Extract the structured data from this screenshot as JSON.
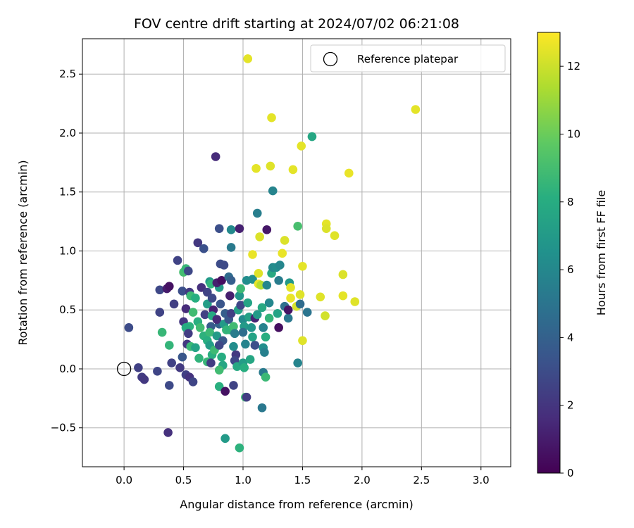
{
  "chart_data": {
    "type": "scatter",
    "title": "FOV centre drift starting at 2024/07/02 06:21:08",
    "xlabel": "Angular distance from reference (arcmin)",
    "ylabel": "Rotation from reference (arcmin)",
    "xlim": [
      -0.35,
      3.25
    ],
    "ylim": [
      -0.83,
      2.8
    ],
    "xticks": [
      0.0,
      0.5,
      1.0,
      1.5,
      2.0,
      2.5,
      3.0
    ],
    "xtick_labels": [
      "0.0",
      "0.5",
      "1.0",
      "1.5",
      "2.0",
      "2.5",
      "3.0"
    ],
    "yticks": [
      -0.5,
      0.0,
      0.5,
      1.0,
      1.5,
      2.0,
      2.5
    ],
    "ytick_labels": [
      "−0.5",
      "0.0",
      "0.5",
      "1.0",
      "1.5",
      "2.0",
      "2.5"
    ],
    "grid": true,
    "legend": {
      "placement": "top-right",
      "entries": [
        "Reference platepar"
      ]
    },
    "reference_point": {
      "x": 0.0,
      "y": 0.0
    },
    "colorbar": {
      "label": "Hours from first FF file",
      "range": [
        0,
        13
      ],
      "ticks": [
        0,
        2,
        4,
        6,
        8,
        10,
        12
      ],
      "tick_labels": [
        "0",
        "2",
        "4",
        "6",
        "8",
        "10",
        "12"
      ],
      "colormap": "viridis"
    },
    "points": [
      {
        "x": 0.12,
        "y": 0.01,
        "h": 2.5
      },
      {
        "x": 0.15,
        "y": -0.07,
        "h": 2.3
      },
      {
        "x": 0.17,
        "y": -0.09,
        "h": 2.1
      },
      {
        "x": 0.04,
        "y": 0.35,
        "h": 3.0
      },
      {
        "x": 0.28,
        "y": -0.02,
        "h": 2.7
      },
      {
        "x": 0.37,
        "y": -0.54,
        "h": 1.8
      },
      {
        "x": 0.38,
        "y": -0.14,
        "h": 2.9
      },
      {
        "x": 0.3,
        "y": 0.48,
        "h": 2.6
      },
      {
        "x": 0.3,
        "y": 0.67,
        "h": 2.8
      },
      {
        "x": 0.36,
        "y": 0.68,
        "h": 1.0
      },
      {
        "x": 0.38,
        "y": 0.7,
        "h": 0.6
      },
      {
        "x": 0.45,
        "y": 0.92,
        "h": 2.6
      },
      {
        "x": 0.42,
        "y": 0.55,
        "h": 2.4
      },
      {
        "x": 0.38,
        "y": 0.2,
        "h": 8.5
      },
      {
        "x": 0.32,
        "y": 0.31,
        "h": 8.6
      },
      {
        "x": 0.4,
        "y": 0.05,
        "h": 2.5
      },
      {
        "x": 0.47,
        "y": 0.01,
        "h": 2.2
      },
      {
        "x": 0.52,
        "y": -0.05,
        "h": 2.4
      },
      {
        "x": 0.55,
        "y": -0.07,
        "h": 1.9
      },
      {
        "x": 0.58,
        "y": -0.11,
        "h": 2.7
      },
      {
        "x": 0.49,
        "y": 0.1,
        "h": 3.5
      },
      {
        "x": 0.5,
        "y": 0.4,
        "h": 2.0
      },
      {
        "x": 0.52,
        "y": 0.51,
        "h": 1.6
      },
      {
        "x": 0.49,
        "y": 0.66,
        "h": 3.1
      },
      {
        "x": 0.5,
        "y": 0.82,
        "h": 9.0
      },
      {
        "x": 0.52,
        "y": 0.85,
        "h": 8.6
      },
      {
        "x": 0.54,
        "y": 0.83,
        "h": 2.8
      },
      {
        "x": 0.55,
        "y": 0.65,
        "h": 2.2
      },
      {
        "x": 0.56,
        "y": 0.62,
        "h": 8.8
      },
      {
        "x": 0.6,
        "y": 0.6,
        "h": 8.1
      },
      {
        "x": 0.58,
        "y": 0.48,
        "h": 8.9
      },
      {
        "x": 0.55,
        "y": 0.36,
        "h": 8.3
      },
      {
        "x": 0.52,
        "y": 0.35,
        "h": 8.0
      },
      {
        "x": 0.54,
        "y": 0.3,
        "h": 2.3
      },
      {
        "x": 0.53,
        "y": 0.21,
        "h": 2.1
      },
      {
        "x": 0.56,
        "y": 0.19,
        "h": 8.7
      },
      {
        "x": 0.6,
        "y": 0.18,
        "h": 7.5
      },
      {
        "x": 0.63,
        "y": 0.09,
        "h": 8.4
      },
      {
        "x": 0.62,
        "y": 0.4,
        "h": 8.2
      },
      {
        "x": 0.64,
        "y": 0.35,
        "h": 8.9
      },
      {
        "x": 0.67,
        "y": 0.28,
        "h": 8.3
      },
      {
        "x": 0.68,
        "y": 0.46,
        "h": 2.5
      },
      {
        "x": 0.62,
        "y": 1.07,
        "h": 2.1
      },
      {
        "x": 0.67,
        "y": 1.02,
        "h": 3.2
      },
      {
        "x": 0.65,
        "y": 0.69,
        "h": 1.8
      },
      {
        "x": 0.7,
        "y": 0.65,
        "h": 2.6
      },
      {
        "x": 0.7,
        "y": 0.55,
        "h": 7.2
      },
      {
        "x": 0.72,
        "y": 0.74,
        "h": 7.0
      },
      {
        "x": 0.73,
        "y": 0.72,
        "h": 8.4
      },
      {
        "x": 0.74,
        "y": 0.6,
        "h": 2.9
      },
      {
        "x": 0.75,
        "y": 0.5,
        "h": 1.2
      },
      {
        "x": 0.74,
        "y": 0.45,
        "h": 7.8
      },
      {
        "x": 0.73,
        "y": 0.36,
        "h": 3.7
      },
      {
        "x": 0.72,
        "y": 0.31,
        "h": 8.7
      },
      {
        "x": 0.7,
        "y": 0.24,
        "h": 8.1
      },
      {
        "x": 0.72,
        "y": 0.2,
        "h": 7.2
      },
      {
        "x": 0.74,
        "y": 0.12,
        "h": 8.2
      },
      {
        "x": 0.7,
        "y": 0.06,
        "h": 8.6
      },
      {
        "x": 0.73,
        "y": 0.05,
        "h": 2.3
      },
      {
        "x": 0.76,
        "y": 0.16,
        "h": 8.8
      },
      {
        "x": 0.78,
        "y": 0.28,
        "h": 7.0
      },
      {
        "x": 0.8,
        "y": 0.38,
        "h": 4.0
      },
      {
        "x": 0.78,
        "y": 0.42,
        "h": 1.5
      },
      {
        "x": 0.81,
        "y": 0.55,
        "h": 3.4
      },
      {
        "x": 0.8,
        "y": 0.69,
        "h": 7.1
      },
      {
        "x": 0.78,
        "y": 0.73,
        "h": 1.1
      },
      {
        "x": 0.82,
        "y": 0.75,
        "h": 0.5
      },
      {
        "x": 0.81,
        "y": 0.89,
        "h": 3.0
      },
      {
        "x": 0.84,
        "y": 0.88,
        "h": 2.9
      },
      {
        "x": 0.8,
        "y": 1.19,
        "h": 3.1
      },
      {
        "x": 0.77,
        "y": 1.8,
        "h": 1.6
      },
      {
        "x": 0.85,
        "y": 0.47,
        "h": 3.8
      },
      {
        "x": 0.84,
        "y": 0.38,
        "h": 7.0
      },
      {
        "x": 0.86,
        "y": 0.33,
        "h": 8.5
      },
      {
        "x": 0.83,
        "y": 0.24,
        "h": 3.5
      },
      {
        "x": 0.8,
        "y": 0.2,
        "h": 2.8
      },
      {
        "x": 0.82,
        "y": 0.1,
        "h": 8.0
      },
      {
        "x": 0.83,
        "y": 0.03,
        "h": 7.7
      },
      {
        "x": 0.8,
        "y": -0.01,
        "h": 8.9
      },
      {
        "x": 0.8,
        "y": -0.15,
        "h": 8.2
      },
      {
        "x": 0.85,
        "y": -0.19,
        "h": 0.6
      },
      {
        "x": 0.85,
        "y": -0.59,
        "h": 7.0
      },
      {
        "x": 0.89,
        "y": 0.33,
        "h": 8.4
      },
      {
        "x": 0.88,
        "y": 0.42,
        "h": 3.5
      },
      {
        "x": 0.9,
        "y": 0.47,
        "h": 2.4
      },
      {
        "x": 0.89,
        "y": 0.62,
        "h": 1.1
      },
      {
        "x": 0.88,
        "y": 0.78,
        "h": 4.5
      },
      {
        "x": 0.9,
        "y": 0.75,
        "h": 3.9
      },
      {
        "x": 0.9,
        "y": 1.03,
        "h": 5.3
      },
      {
        "x": 0.9,
        "y": 1.18,
        "h": 6.1
      },
      {
        "x": 0.92,
        "y": 0.36,
        "h": 8.9
      },
      {
        "x": 0.93,
        "y": 0.3,
        "h": 5.4
      },
      {
        "x": 0.92,
        "y": 0.19,
        "h": 6.3
      },
      {
        "x": 0.94,
        "y": 0.12,
        "h": 2.2
      },
      {
        "x": 0.93,
        "y": 0.07,
        "h": 2.8
      },
      {
        "x": 0.95,
        "y": 0.02,
        "h": 7.8
      },
      {
        "x": 0.92,
        "y": -0.14,
        "h": 2.6
      },
      {
        "x": 0.97,
        "y": -0.67,
        "h": 8.3
      },
      {
        "x": 0.96,
        "y": 0.5,
        "h": 7.4
      },
      {
        "x": 0.98,
        "y": 0.54,
        "h": 2.7
      },
      {
        "x": 0.97,
        "y": 0.62,
        "h": 6.8
      },
      {
        "x": 0.98,
        "y": 0.68,
        "h": 8.8
      },
      {
        "x": 0.97,
        "y": 1.19,
        "h": 1.2
      },
      {
        "x": 1.0,
        "y": 0.42,
        "h": 6.2
      },
      {
        "x": 1.01,
        "y": 0.36,
        "h": 7.0
      },
      {
        "x": 1.0,
        "y": 0.31,
        "h": 4.6
      },
      {
        "x": 1.02,
        "y": 0.21,
        "h": 5.8
      },
      {
        "x": 1.0,
        "y": 0.05,
        "h": 7.2
      },
      {
        "x": 1.01,
        "y": 0.01,
        "h": 8.1
      },
      {
        "x": 1.02,
        "y": -0.24,
        "h": 8.8
      },
      {
        "x": 1.03,
        "y": -0.24,
        "h": 2.3
      },
      {
        "x": 1.03,
        "y": 0.75,
        "h": 6.3
      },
      {
        "x": 1.04,
        "y": 0.56,
        "h": 7.5
      },
      {
        "x": 1.04,
        "y": 2.63,
        "h": 12.5
      },
      {
        "x": 1.05,
        "y": 0.44,
        "h": 7.4
      },
      {
        "x": 1.07,
        "y": 0.35,
        "h": 6.7
      },
      {
        "x": 1.08,
        "y": 0.27,
        "h": 7.5
      },
      {
        "x": 1.06,
        "y": 0.08,
        "h": 7.7
      },
      {
        "x": 1.08,
        "y": 0.97,
        "h": 12.6
      },
      {
        "x": 1.08,
        "y": 0.76,
        "h": 6.4
      },
      {
        "x": 1.1,
        "y": 0.2,
        "h": 3.1
      },
      {
        "x": 1.1,
        "y": 0.43,
        "h": 1.3
      },
      {
        "x": 1.12,
        "y": 0.46,
        "h": 7.0
      },
      {
        "x": 1.12,
        "y": 1.32,
        "h": 5.5
      },
      {
        "x": 1.13,
        "y": 0.81,
        "h": 12.4
      },
      {
        "x": 1.13,
        "y": 0.72,
        "h": 12.6
      },
      {
        "x": 1.14,
        "y": 1.12,
        "h": 12.3
      },
      {
        "x": 1.11,
        "y": 1.7,
        "h": 12.5
      },
      {
        "x": 1.15,
        "y": 0.71,
        "h": 11.5
      },
      {
        "x": 1.16,
        "y": 0.52,
        "h": 7.8
      },
      {
        "x": 1.17,
        "y": 0.35,
        "h": 5.7
      },
      {
        "x": 1.17,
        "y": 0.18,
        "h": 6.4
      },
      {
        "x": 1.17,
        "y": -0.03,
        "h": 5.3
      },
      {
        "x": 1.16,
        "y": -0.33,
        "h": 5.2
      },
      {
        "x": 1.18,
        "y": 0.14,
        "h": 5.6
      },
      {
        "x": 1.19,
        "y": 0.27,
        "h": 8.1
      },
      {
        "x": 1.19,
        "y": -0.07,
        "h": 8.7
      },
      {
        "x": 1.2,
        "y": 0.71,
        "h": 5.9
      },
      {
        "x": 1.2,
        "y": 1.18,
        "h": 0.8
      },
      {
        "x": 1.22,
        "y": 0.43,
        "h": 8.5
      },
      {
        "x": 1.22,
        "y": 0.56,
        "h": 6.0
      },
      {
        "x": 1.23,
        "y": 1.72,
        "h": 12.4
      },
      {
        "x": 1.24,
        "y": 0.81,
        "h": 7.8
      },
      {
        "x": 1.24,
        "y": 2.13,
        "h": 12.5
      },
      {
        "x": 1.25,
        "y": 1.51,
        "h": 5.8
      },
      {
        "x": 1.25,
        "y": 0.86,
        "h": 6.1
      },
      {
        "x": 1.28,
        "y": 0.86,
        "h": 6.3
      },
      {
        "x": 1.29,
        "y": 0.47,
        "h": 7.5
      },
      {
        "x": 1.3,
        "y": 0.35,
        "h": 0.5
      },
      {
        "x": 1.3,
        "y": 0.75,
        "h": 5.4
      },
      {
        "x": 1.31,
        "y": 0.88,
        "h": 5.9
      },
      {
        "x": 1.33,
        "y": 0.98,
        "h": 12.6
      },
      {
        "x": 1.35,
        "y": 1.09,
        "h": 12.3
      },
      {
        "x": 1.35,
        "y": 0.53,
        "h": 4.8
      },
      {
        "x": 1.38,
        "y": 0.43,
        "h": 5.2
      },
      {
        "x": 1.38,
        "y": 0.5,
        "h": 0.7
      },
      {
        "x": 1.39,
        "y": 0.73,
        "h": 6.9
      },
      {
        "x": 1.4,
        "y": 0.69,
        "h": 12.5
      },
      {
        "x": 1.4,
        "y": 0.6,
        "h": 12.6
      },
      {
        "x": 1.42,
        "y": 1.69,
        "h": 12.5
      },
      {
        "x": 1.45,
        "y": 0.53,
        "h": 12.2
      },
      {
        "x": 1.46,
        "y": 1.21,
        "h": 9.1
      },
      {
        "x": 1.46,
        "y": 0.05,
        "h": 5.8
      },
      {
        "x": 1.48,
        "y": 0.63,
        "h": 12.4
      },
      {
        "x": 1.48,
        "y": 0.55,
        "h": 4.5
      },
      {
        "x": 1.49,
        "y": 1.89,
        "h": 12.5
      },
      {
        "x": 1.5,
        "y": 0.87,
        "h": 12.5
      },
      {
        "x": 1.5,
        "y": 0.24,
        "h": 12.4
      },
      {
        "x": 1.54,
        "y": 0.48,
        "h": 5.0
      },
      {
        "x": 1.58,
        "y": 1.97,
        "h": 7.7
      },
      {
        "x": 1.65,
        "y": 0.61,
        "h": 12.4
      },
      {
        "x": 1.7,
        "y": 1.23,
        "h": 12.5
      },
      {
        "x": 1.7,
        "y": 1.19,
        "h": 12.3
      },
      {
        "x": 1.69,
        "y": 0.45,
        "h": 12.1
      },
      {
        "x": 1.77,
        "y": 1.13,
        "h": 12.4
      },
      {
        "x": 1.84,
        "y": 0.8,
        "h": 12.3
      },
      {
        "x": 1.84,
        "y": 0.62,
        "h": 12.5
      },
      {
        "x": 1.89,
        "y": 1.66,
        "h": 12.6
      },
      {
        "x": 1.94,
        "y": 0.57,
        "h": 12.4
      },
      {
        "x": 2.45,
        "y": 2.2,
        "h": 12.5
      }
    ]
  }
}
